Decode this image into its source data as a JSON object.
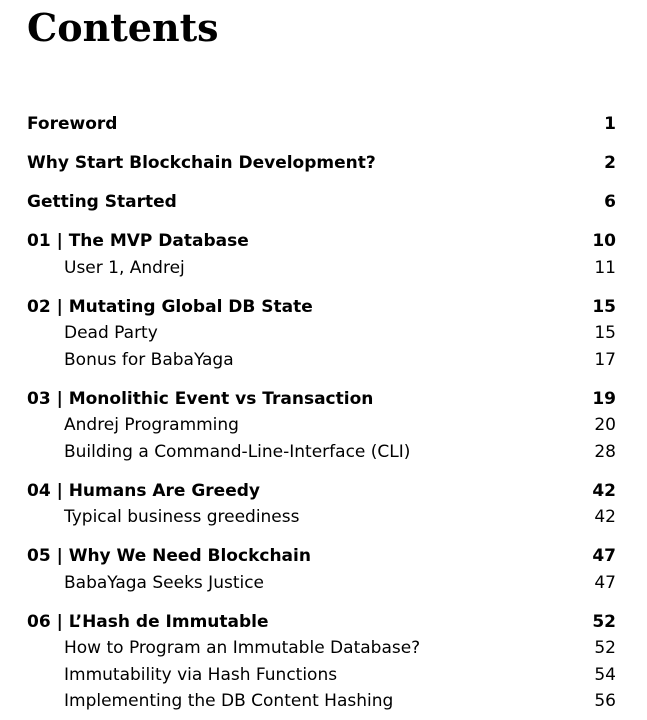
{
  "title": "Contents",
  "entries": [
    {
      "label": "Foreword",
      "page": "1",
      "sections": []
    },
    {
      "label": "Why Start Blockchain Development?",
      "page": "2",
      "sections": []
    },
    {
      "label": "Getting Started",
      "page": "6",
      "sections": []
    },
    {
      "label": "01 | The MVP Database",
      "page": "10",
      "sections": [
        {
          "label": "User 1, Andrej",
          "page": "11"
        }
      ]
    },
    {
      "label": "02 | Mutating Global DB State",
      "page": "15",
      "sections": [
        {
          "label": "Dead Party",
          "page": "15"
        },
        {
          "label": "Bonus for BabaYaga",
          "page": "17"
        }
      ]
    },
    {
      "label": "03 | Monolithic Event vs Transaction",
      "page": "19",
      "sections": [
        {
          "label": "Andrej Programming",
          "page": "20"
        },
        {
          "label": "Building a Command-Line-Interface (CLI)",
          "page": "28"
        }
      ]
    },
    {
      "label": "04 | Humans Are Greedy",
      "page": "42",
      "sections": [
        {
          "label": "Typical business greediness",
          "page": "42"
        }
      ]
    },
    {
      "label": "05 | Why We Need Blockchain",
      "page": "47",
      "sections": [
        {
          "label": "BabaYaga Seeks Justice",
          "page": "47"
        }
      ]
    },
    {
      "label": "06 | L’Hash de Immutable",
      "page": "52",
      "sections": [
        {
          "label": "How to Program an Immutable Database?",
          "page": "52"
        },
        {
          "label": "Immutability via Hash Functions",
          "page": "54"
        },
        {
          "label": "Implementing the DB Content Hashing",
          "page": "56"
        }
      ]
    }
  ]
}
